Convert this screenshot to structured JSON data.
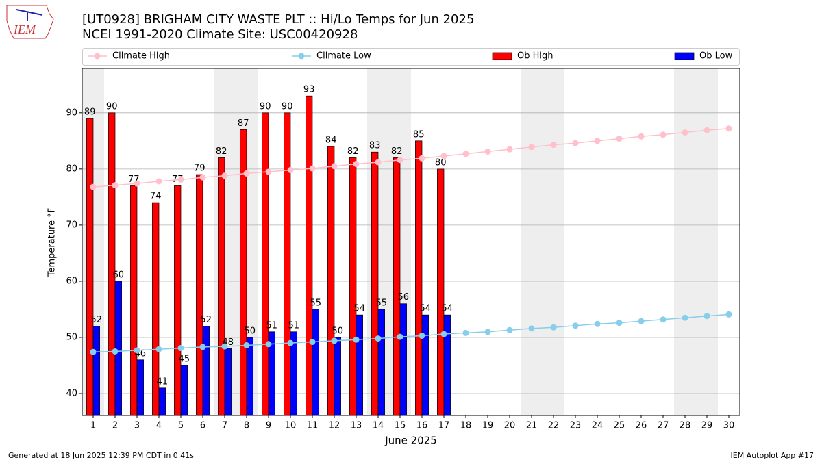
{
  "page": {
    "logo": "IEM",
    "footer_left": "Generated at 18 Jun 2025 12:39 PM CDT in 0.41s",
    "footer_right": "IEM Autoplot App #17"
  },
  "chart_data": {
    "type": "bar",
    "title": "[UT0928] BRIGHAM CITY WASTE PLT :: Hi/Lo Temps for Jun 2025",
    "subtitle": "NCEI 1991-2020 Climate Site: USC00420928",
    "x_label": "June 2025",
    "y_label": "Temperature °F",
    "x": [
      1,
      2,
      3,
      4,
      5,
      6,
      7,
      8,
      9,
      10,
      11,
      12,
      13,
      14,
      15,
      16,
      17,
      18,
      19,
      20,
      21,
      22,
      23,
      24,
      25,
      26,
      27,
      28,
      29,
      30
    ],
    "xlim": [
      0.5,
      30.5
    ],
    "xticks": [
      1,
      2,
      3,
      4,
      5,
      6,
      7,
      8,
      9,
      10,
      11,
      12,
      13,
      14,
      15,
      16,
      17,
      18,
      19,
      20,
      21,
      22,
      23,
      24,
      25,
      26,
      27,
      28,
      29,
      30
    ],
    "ylim": [
      36.1,
      97.9
    ],
    "yticks": [
      40,
      50,
      60,
      70,
      80,
      90
    ],
    "grid": true,
    "shaded_x": [
      1,
      7,
      8,
      14,
      15,
      21,
      22,
      28,
      29
    ],
    "series": [
      {
        "name": "Climate High",
        "kind": "line",
        "color": "#ffc0cb",
        "values": [
          76.8,
          77.1,
          77.4,
          77.8,
          78.1,
          78.5,
          78.8,
          79.2,
          79.5,
          79.8,
          80.1,
          80.5,
          80.9,
          81.2,
          81.6,
          81.9,
          82.3,
          82.7,
          83.1,
          83.5,
          83.9,
          84.3,
          84.6,
          85.0,
          85.4,
          85.8,
          86.1,
          86.5,
          86.9,
          87.2
        ]
      },
      {
        "name": "Climate Low",
        "kind": "line",
        "color": "#87ceeb",
        "values": [
          47.4,
          47.5,
          47.7,
          47.9,
          48.1,
          48.3,
          48.4,
          48.6,
          48.8,
          49.0,
          49.2,
          49.4,
          49.6,
          49.8,
          50.1,
          50.3,
          50.6,
          50.8,
          51.0,
          51.3,
          51.6,
          51.8,
          52.1,
          52.4,
          52.6,
          52.9,
          53.2,
          53.5,
          53.8,
          54.1
        ]
      },
      {
        "name": "Ob High",
        "kind": "bar",
        "color": "#ff0000",
        "values": [
          89,
          90,
          77,
          74,
          77,
          79,
          82,
          87,
          90,
          90,
          93,
          84,
          82,
          83,
          82,
          85,
          80,
          null,
          null,
          null,
          null,
          null,
          null,
          null,
          null,
          null,
          null,
          null,
          null,
          null
        ]
      },
      {
        "name": "Ob Low",
        "kind": "bar",
        "color": "#0000ff",
        "values": [
          52,
          60,
          46,
          41,
          45,
          52,
          48,
          50,
          51,
          51,
          55,
          50,
          54,
          55,
          56,
          54,
          54,
          null,
          null,
          null,
          null,
          null,
          null,
          null,
          null,
          null,
          null,
          null,
          null,
          null
        ]
      }
    ]
  }
}
